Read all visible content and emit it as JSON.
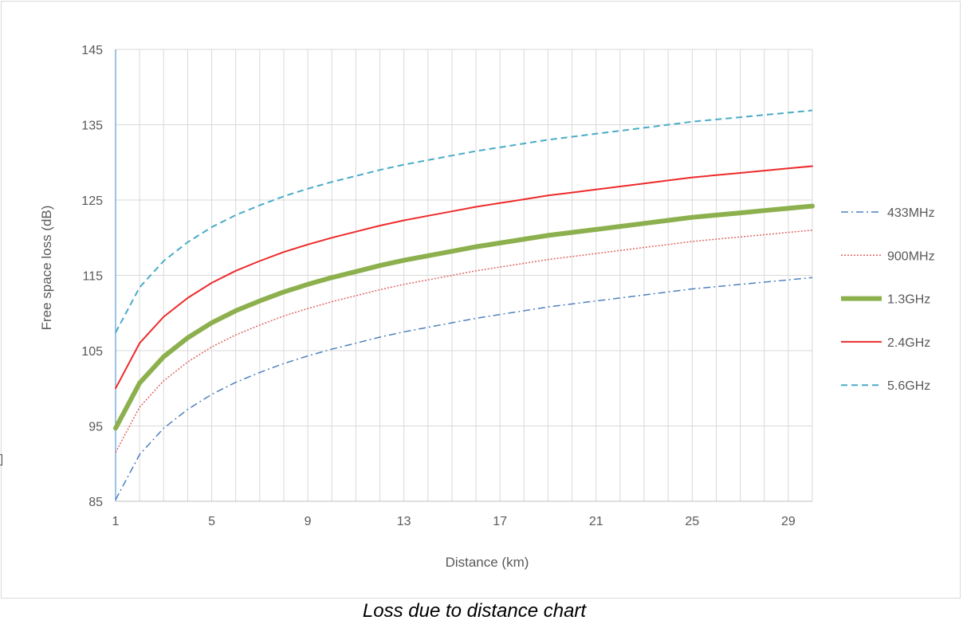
{
  "caption": "Loss due to distance chart",
  "chart_data": {
    "type": "line",
    "title": "",
    "xlabel": "Distance (km)",
    "ylabel": "Free space loss (dB)",
    "ylim": [
      85,
      145
    ],
    "yticks": [
      85,
      95,
      105,
      115,
      125,
      135,
      145
    ],
    "xlim": [
      1,
      30
    ],
    "xticks": [
      1,
      5,
      9,
      13,
      17,
      21,
      25,
      29
    ],
    "grid": true,
    "legend_position": "right",
    "x": [
      1,
      2,
      3,
      4,
      5,
      6,
      7,
      8,
      9,
      10,
      11,
      12,
      13,
      14,
      15,
      16,
      17,
      18,
      19,
      20,
      21,
      22,
      23,
      24,
      25,
      26,
      27,
      28,
      29,
      30
    ],
    "series": [
      {
        "name": "433MHz",
        "color": "#4f81bd",
        "dash": "dashdot",
        "width": 1.5,
        "values": [
          85.2,
          91.2,
          94.7,
          97.2,
          99.2,
          100.8,
          102.1,
          103.3,
          104.3,
          105.2,
          106.0,
          106.8,
          107.5,
          108.1,
          108.7,
          109.3,
          109.8,
          110.3,
          110.8,
          111.2,
          111.6,
          112.0,
          112.4,
          112.8,
          113.2,
          113.5,
          113.8,
          114.1,
          114.4,
          114.7
        ]
      },
      {
        "name": "900MHz",
        "color": "#e06666",
        "dash": "dotted",
        "width": 1.5,
        "values": [
          91.5,
          97.5,
          101.0,
          103.5,
          105.5,
          107.1,
          108.4,
          109.6,
          110.6,
          111.5,
          112.3,
          113.1,
          113.8,
          114.4,
          115.0,
          115.6,
          116.1,
          116.6,
          117.1,
          117.5,
          117.9,
          118.3,
          118.7,
          119.1,
          119.5,
          119.8,
          120.1,
          120.4,
          120.7,
          121.0
        ]
      },
      {
        "name": "1.3GHz",
        "color": "#8db04e",
        "dash": "solid",
        "width": 6,
        "values": [
          94.7,
          100.7,
          104.2,
          106.7,
          108.7,
          110.3,
          111.6,
          112.8,
          113.8,
          114.7,
          115.5,
          116.3,
          117.0,
          117.6,
          118.2,
          118.8,
          119.3,
          119.8,
          120.3,
          120.7,
          121.1,
          121.5,
          121.9,
          122.3,
          122.7,
          123.0,
          123.3,
          123.6,
          123.9,
          124.2
        ]
      },
      {
        "name": "2.4GHz",
        "color": "#ee2a2a",
        "dash": "solid",
        "width": 2,
        "values": [
          100.0,
          106.0,
          109.5,
          112.0,
          114.0,
          115.6,
          116.9,
          118.1,
          119.1,
          120.0,
          120.8,
          121.6,
          122.3,
          122.9,
          123.5,
          124.1,
          124.6,
          125.1,
          125.6,
          126.0,
          126.4,
          126.8,
          127.2,
          127.6,
          128.0,
          128.3,
          128.6,
          128.9,
          129.2,
          129.5
        ]
      },
      {
        "name": "5.6GHz",
        "color": "#4aacc6",
        "dash": "dashed",
        "width": 2,
        "values": [
          107.4,
          113.4,
          116.9,
          119.4,
          121.4,
          123.0,
          124.3,
          125.5,
          126.5,
          127.4,
          128.2,
          129.0,
          129.7,
          130.3,
          130.9,
          131.5,
          132.0,
          132.5,
          133.0,
          133.4,
          133.8,
          134.2,
          134.6,
          135.0,
          135.4,
          135.7,
          136.0,
          136.3,
          136.6,
          136.9
        ]
      }
    ]
  }
}
